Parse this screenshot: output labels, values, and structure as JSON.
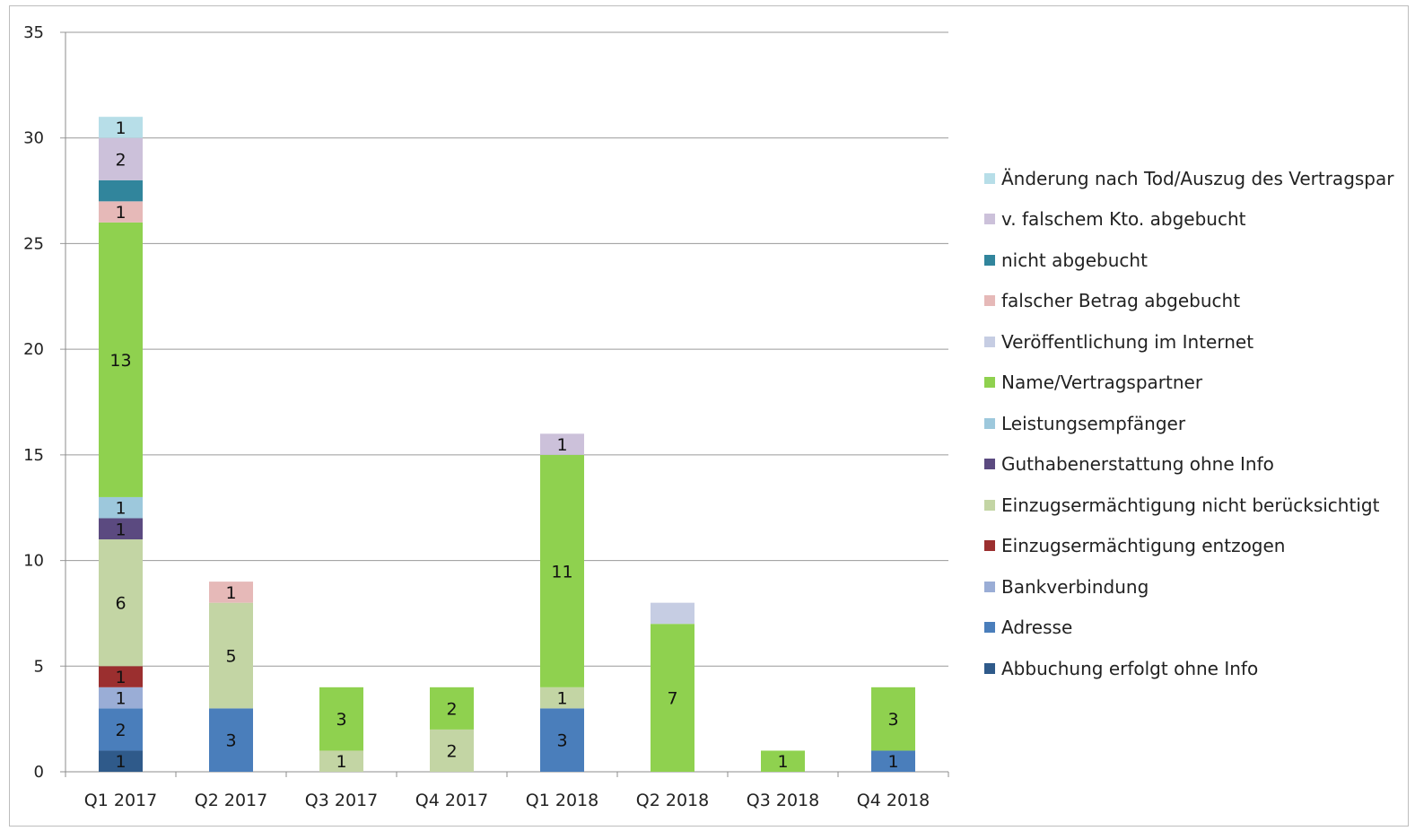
{
  "chart_data": {
    "type": "bar",
    "stacked": true,
    "categories": [
      "Q1 2017",
      "Q2 2017",
      "Q3 2017",
      "Q4 2017",
      "Q1 2018",
      "Q2 2018",
      "Q3 2018",
      "Q4 2018"
    ],
    "ylim": [
      0,
      35
    ],
    "yticks": [
      0,
      5,
      10,
      15,
      20,
      25,
      30,
      35
    ],
    "grid": true,
    "legend_position": "right",
    "series": [
      {
        "name": "Abbuchung erfolgt ohne Info",
        "color": "#2f5a8a",
        "values": [
          1,
          0,
          0,
          0,
          0,
          0,
          0,
          0
        ],
        "labels": [
          true,
          false,
          false,
          false,
          false,
          false,
          false,
          false
        ]
      },
      {
        "name": "Adresse",
        "color": "#4a7ebb",
        "values": [
          2,
          3,
          0,
          0,
          3,
          0,
          0,
          1
        ],
        "labels": [
          true,
          true,
          false,
          false,
          true,
          false,
          false,
          true
        ]
      },
      {
        "name": "Bankverbindung",
        "color": "#9aadd6",
        "values": [
          1,
          0,
          0,
          0,
          0,
          0,
          0,
          0
        ],
        "labels": [
          true,
          false,
          false,
          false,
          false,
          false,
          false,
          false
        ]
      },
      {
        "name": "Einzugsermächtigung entzogen",
        "color": "#9b2f2f",
        "values": [
          1,
          0,
          0,
          0,
          0,
          0,
          0,
          0
        ],
        "labels": [
          true,
          false,
          false,
          false,
          false,
          false,
          false,
          false
        ]
      },
      {
        "name": "Einzugsermächtigung nicht berücksichtigt",
        "color": "#c3d5a4",
        "values": [
          6,
          5,
          1,
          2,
          1,
          0,
          0,
          0
        ],
        "labels": [
          true,
          true,
          true,
          true,
          true,
          false,
          false,
          false
        ]
      },
      {
        "name": "Guthabenerstattung ohne Info",
        "color": "#5b4a80",
        "values": [
          1,
          0,
          0,
          0,
          0,
          0,
          0,
          0
        ],
        "labels": [
          true,
          false,
          false,
          false,
          false,
          false,
          false,
          false
        ]
      },
      {
        "name": "Leistungsempfänger",
        "color": "#9dc8dc",
        "values": [
          1,
          0,
          0,
          0,
          0,
          0,
          0,
          0
        ],
        "labels": [
          true,
          false,
          false,
          false,
          false,
          false,
          false,
          false
        ]
      },
      {
        "name": "Name/Vertragspartner",
        "color": "#8fd14f",
        "values": [
          13,
          0,
          3,
          2,
          11,
          7,
          1,
          3
        ],
        "labels": [
          true,
          false,
          true,
          true,
          true,
          true,
          true,
          true
        ]
      },
      {
        "name": "Veröffentlichung im Internet",
        "color": "#c6cde3",
        "values": [
          0,
          0,
          0,
          0,
          0,
          1,
          0,
          0
        ],
        "labels": [
          false,
          false,
          false,
          false,
          false,
          false,
          false,
          false
        ]
      },
      {
        "name": "falscher Betrag abgebucht",
        "color": "#e6b9b8",
        "values": [
          1,
          1,
          0,
          0,
          0,
          0,
          0,
          0
        ],
        "labels": [
          true,
          true,
          false,
          false,
          false,
          false,
          false,
          false
        ]
      },
      {
        "name": "nicht abgebucht",
        "color": "#31859c",
        "values": [
          1,
          0,
          0,
          0,
          0,
          0,
          0,
          0
        ],
        "labels": [
          false,
          false,
          false,
          false,
          false,
          false,
          false,
          false
        ]
      },
      {
        "name": "v. falschem Kto. abgebucht",
        "color": "#ccc1da",
        "values": [
          2,
          0,
          0,
          0,
          1,
          0,
          0,
          0
        ],
        "labels": [
          true,
          false,
          false,
          false,
          true,
          false,
          false,
          false
        ]
      },
      {
        "name": "Änderung nach Tod/Auszug des Vertragspar",
        "color": "#b7dee8",
        "values": [
          1,
          0,
          0,
          0,
          0,
          0,
          0,
          0
        ],
        "labels": [
          true,
          false,
          false,
          false,
          false,
          false,
          false,
          false
        ]
      }
    ]
  }
}
